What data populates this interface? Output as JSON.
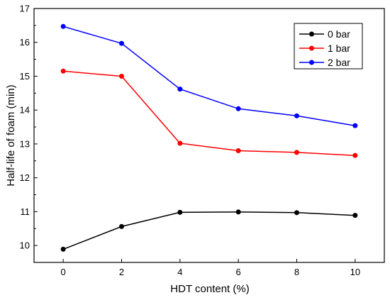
{
  "chart_data": {
    "type": "line",
    "title": "",
    "xlabel": "HDT content (%)",
    "ylabel": "Half-life of foam (min)",
    "x": [
      0,
      2,
      4,
      6,
      8,
      10
    ],
    "xlim": [
      -1,
      11
    ],
    "ylim": [
      9.5,
      17
    ],
    "xticks": [
      0,
      2,
      4,
      6,
      8,
      10
    ],
    "yticks": [
      10,
      11,
      12,
      13,
      14,
      15,
      16,
      17
    ],
    "grid": false,
    "legend_position": "top-right",
    "series": [
      {
        "name": "0 bar",
        "color": "#000000",
        "values": [
          9.89,
          10.56,
          10.98,
          10.99,
          10.97,
          10.89
        ]
      },
      {
        "name": "1 bar",
        "color": "#ff0000",
        "values": [
          15.15,
          15.0,
          13.02,
          12.8,
          12.75,
          12.66
        ]
      },
      {
        "name": "2 bar",
        "color": "#0000ff",
        "values": [
          16.47,
          15.97,
          14.62,
          14.04,
          13.83,
          13.54
        ]
      }
    ]
  }
}
